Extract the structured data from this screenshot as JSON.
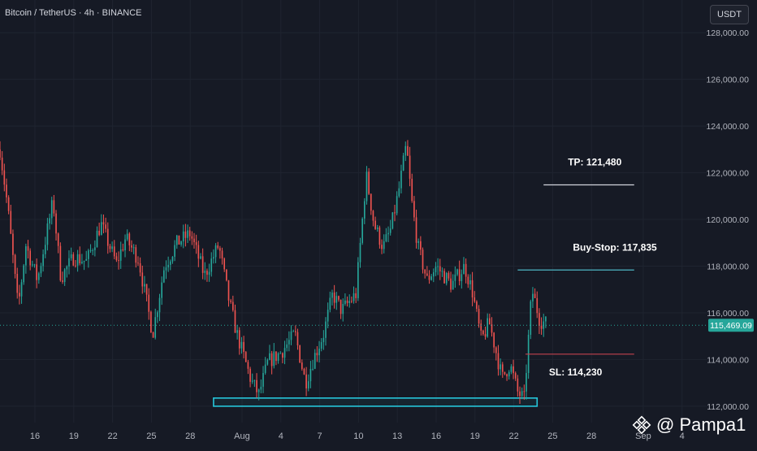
{
  "header": {
    "symbol_title": "Bitcoin / TetherUS · 4h · BINANCE",
    "currency": "USDT"
  },
  "watermark": {
    "text": "@ Pampa1",
    "icon": "binance-diamond-icon"
  },
  "chart_data": {
    "type": "candlestick",
    "title": "Bitcoin / TetherUS · 4h · BINANCE",
    "ylim": [
      111300,
      129400
    ],
    "y_ticks": [
      112000,
      114000,
      116000,
      118000,
      120000,
      122000,
      124000,
      126000,
      128000
    ],
    "y_tick_labels": [
      "112,000.00",
      "114,000.00",
      "116,000.00",
      "118,000.00",
      "120,000.00",
      "122,000.00",
      "124,000.00",
      "126,000.00",
      "128,000.00"
    ],
    "x_ticks": [
      {
        "label": "16",
        "day": 16
      },
      {
        "label": "19",
        "day": 19
      },
      {
        "label": "22",
        "day": 22
      },
      {
        "label": "25",
        "day": 25
      },
      {
        "label": "28",
        "day": 28
      },
      {
        "label": "Aug",
        "day": 32
      },
      {
        "label": "4",
        "day": 35
      },
      {
        "label": "7",
        "day": 38
      },
      {
        "label": "10",
        "day": 41
      },
      {
        "label": "13",
        "day": 44
      },
      {
        "label": "16",
        "day": 47
      },
      {
        "label": "19",
        "day": 50
      },
      {
        "label": "22",
        "day": 53
      },
      {
        "label": "25",
        "day": 56
      },
      {
        "label": "28",
        "day": 59
      },
      {
        "label": "Sep",
        "day": 63
      },
      {
        "label": "4",
        "day": 66
      }
    ],
    "xlim_days": [
      13.3,
      67.9
    ],
    "current_price": 115469.09,
    "current_price_label": "115,469.09",
    "levels": [
      {
        "name": "TP",
        "label": "TP: 121,480",
        "value": 121480,
        "color": "#d1d4dc",
        "from_day": 55.3,
        "to_day": 62.3
      },
      {
        "name": "Buy-Stop",
        "label": "Buy-Stop: 117,835",
        "value": 117835,
        "color": "#4db6c4",
        "from_day": 53.3,
        "to_day": 62.3
      },
      {
        "name": "SL",
        "label": "SL: 114,230",
        "value": 114230,
        "color": "#c2434e",
        "from_day": 53.9,
        "to_day": 62.3
      }
    ],
    "support_zone": {
      "from_day": 29.8,
      "to_day": 54.8,
      "low": 112000,
      "high": 112350,
      "color": "#26c6da"
    },
    "anchors": [
      [
        13.3,
        123000
      ],
      [
        13.9,
        120500
      ],
      [
        14.7,
        116200
      ],
      [
        15.3,
        118900
      ],
      [
        16.2,
        117400
      ],
      [
        17.4,
        120800
      ],
      [
        18.0,
        117500
      ],
      [
        19.0,
        118400
      ],
      [
        20.0,
        118200
      ],
      [
        21.1,
        119800
      ],
      [
        22.3,
        118100
      ],
      [
        23.0,
        119200
      ],
      [
        24.0,
        118300
      ],
      [
        25.1,
        115100
      ],
      [
        26.0,
        118000
      ],
      [
        27.0,
        119000
      ],
      [
        28.0,
        119400
      ],
      [
        29.1,
        117600
      ],
      [
        30.2,
        118900
      ],
      [
        31.0,
        116500
      ],
      [
        31.6,
        115100
      ],
      [
        32.7,
        113100
      ],
      [
        33.3,
        112500
      ],
      [
        34.0,
        113900
      ],
      [
        35.0,
        114300
      ],
      [
        36.1,
        115100
      ],
      [
        36.9,
        113000
      ],
      [
        37.5,
        114000
      ],
      [
        38.3,
        115100
      ],
      [
        39.0,
        116800
      ],
      [
        39.7,
        116100
      ],
      [
        40.8,
        116800
      ],
      [
        41.6,
        121900
      ],
      [
        42.2,
        119800
      ],
      [
        42.9,
        118800
      ],
      [
        43.5,
        119600
      ],
      [
        44.1,
        121200
      ],
      [
        44.7,
        123200
      ],
      [
        45.1,
        120800
      ],
      [
        45.6,
        118800
      ],
      [
        46.3,
        117400
      ],
      [
        47.0,
        118000
      ],
      [
        48.2,
        117200
      ],
      [
        49.2,
        118000
      ],
      [
        49.8,
        116900
      ],
      [
        50.5,
        114800
      ],
      [
        51.1,
        115600
      ],
      [
        52.1,
        113200
      ],
      [
        52.7,
        113800
      ],
      [
        53.3,
        112600
      ],
      [
        53.8,
        112300
      ],
      [
        54.4,
        117000
      ],
      [
        55.0,
        115700
      ],
      [
        55.6,
        115500
      ]
    ]
  }
}
